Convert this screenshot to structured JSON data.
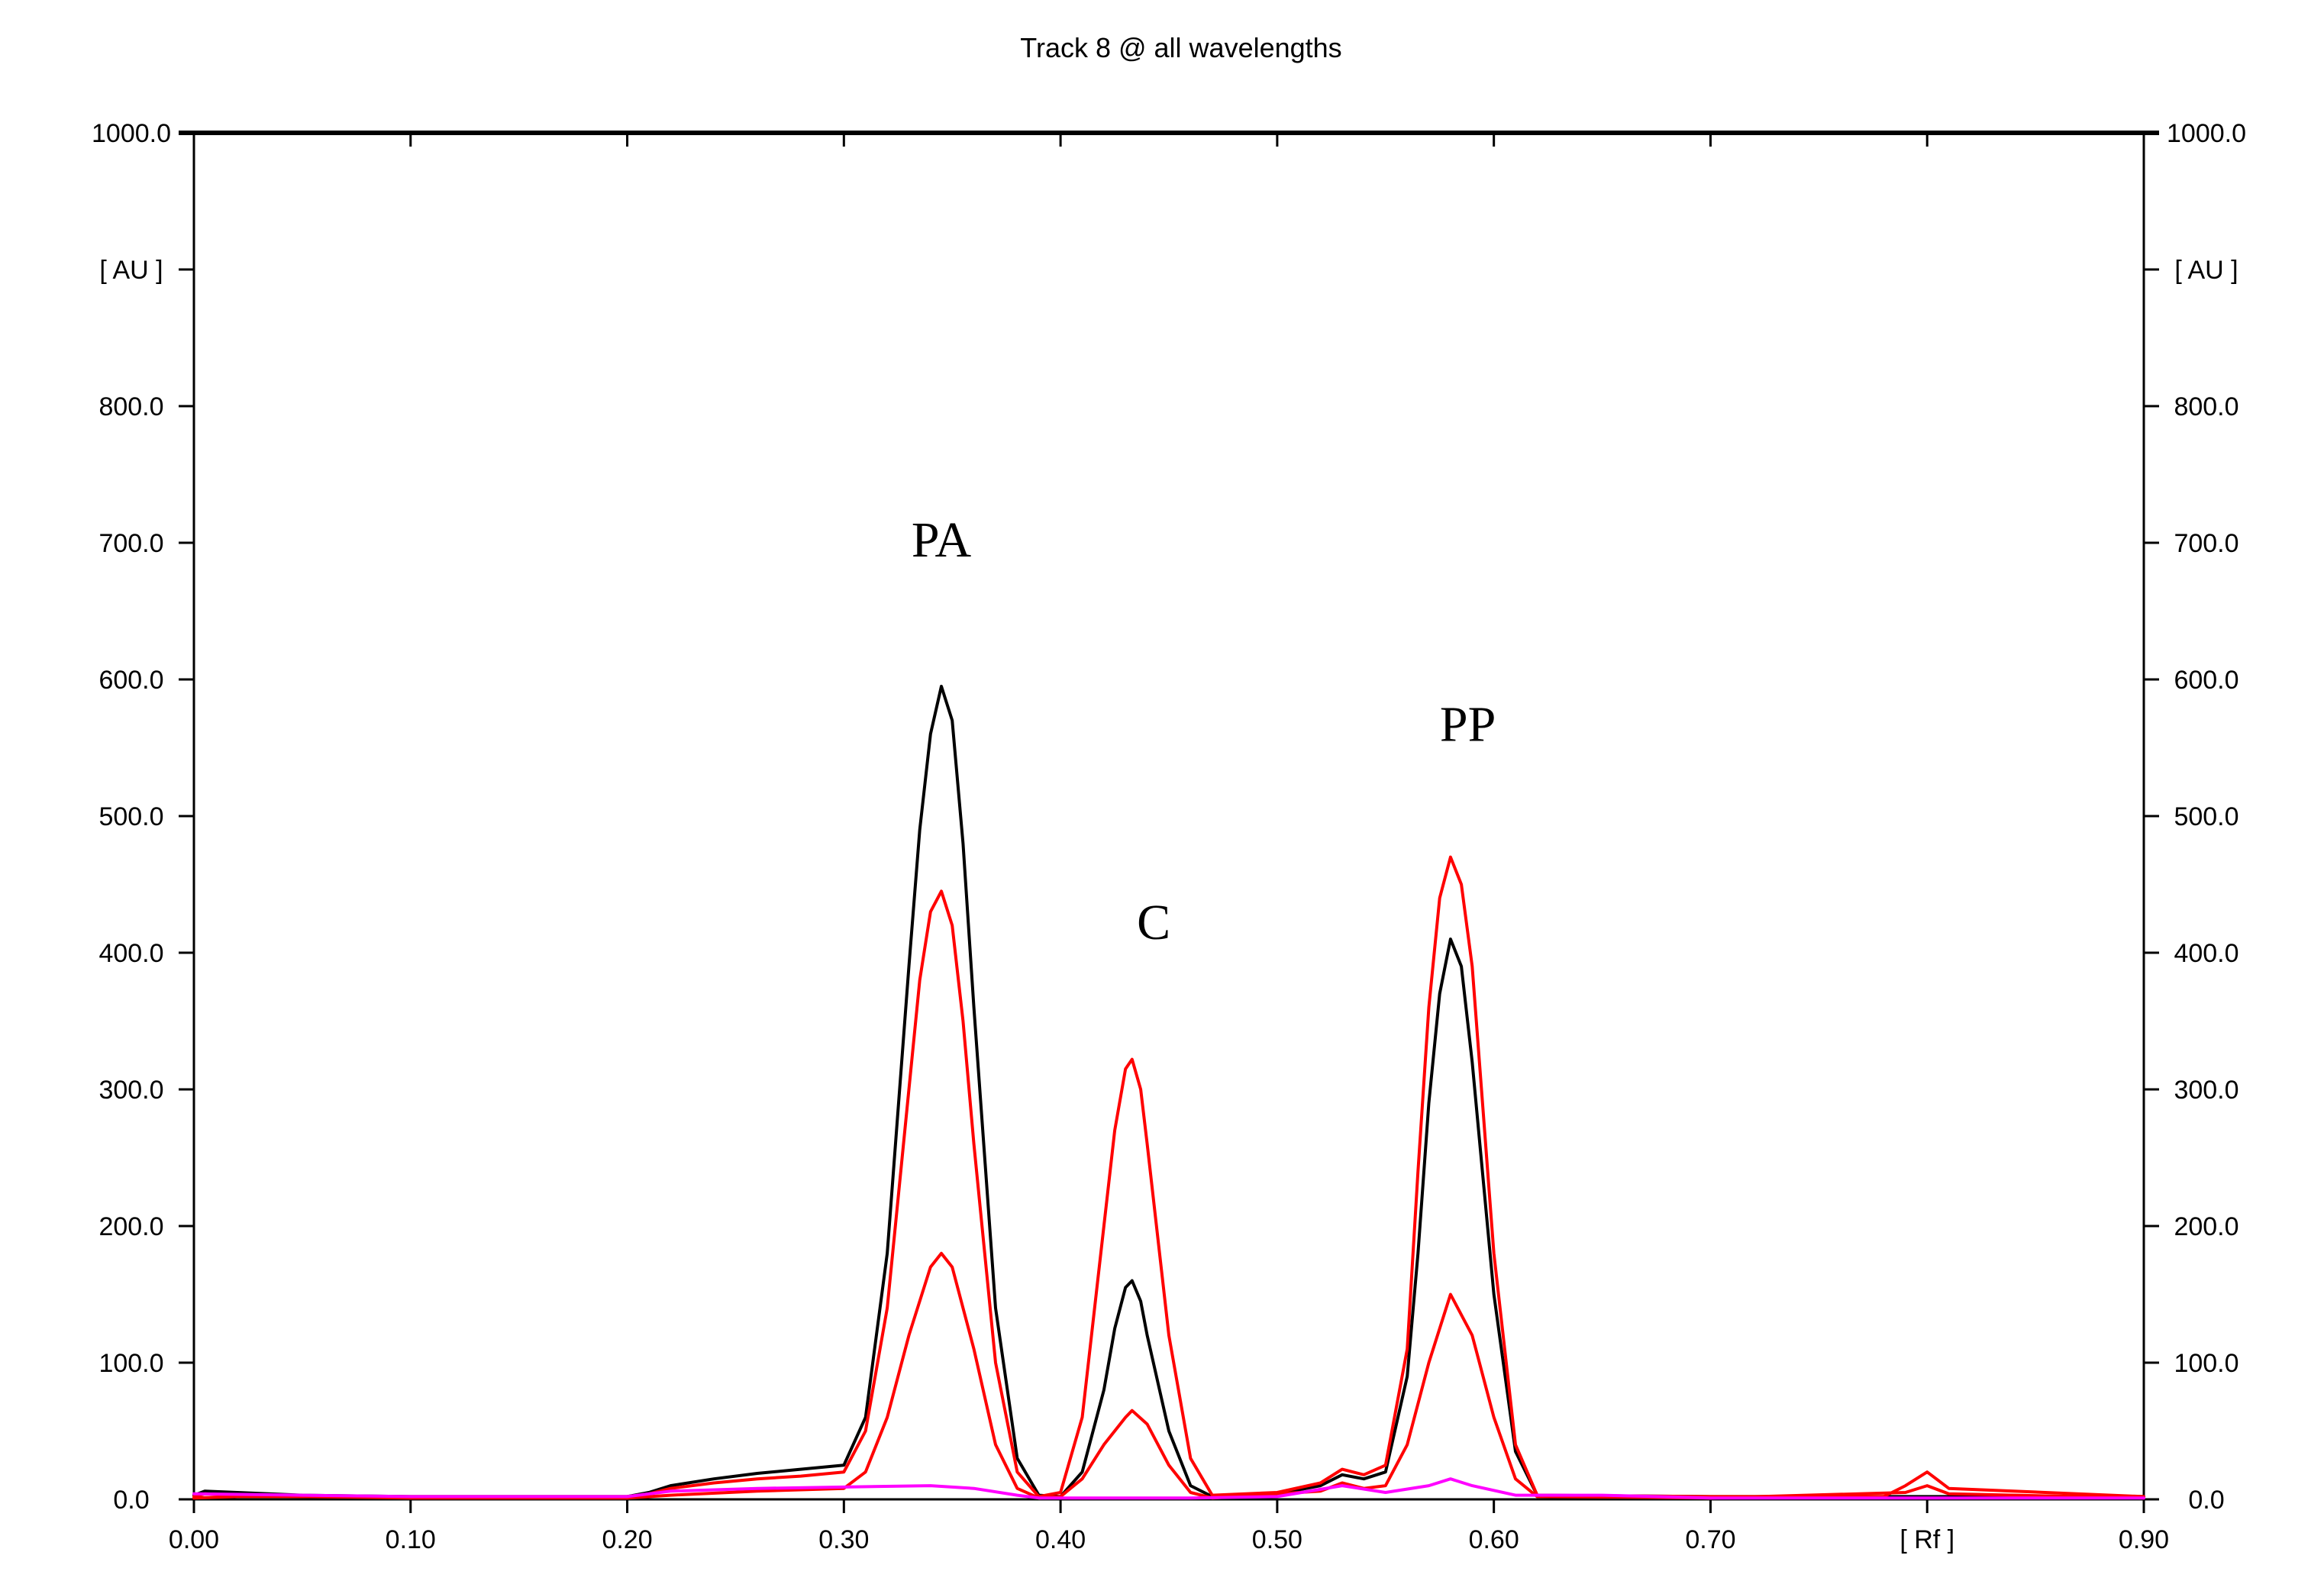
{
  "chart_data": {
    "type": "line",
    "title": "Track 8 @ all wavelengths",
    "x_tick_labels": [
      "0.00",
      "0.10",
      "0.20",
      "0.30",
      "0.40",
      "0.50",
      "0.60",
      "0.70",
      "[ Rf ]",
      "0.90"
    ],
    "y_tick_labels": [
      "0.0",
      "100.0",
      "200.0",
      "300.0",
      "400.0",
      "500.0",
      "600.0",
      "700.0",
      "800.0",
      "[ AU ]",
      "1000.0"
    ],
    "xlim": [
      0.0,
      0.9
    ],
    "ylim": [
      0.0,
      1000.0
    ],
    "grid": false,
    "legend": "none",
    "annotations": [
      {
        "text": "PA",
        "x": 0.345,
        "y": 690
      },
      {
        "text": "C",
        "x": 0.443,
        "y": 410
      },
      {
        "text": "PP",
        "x": 0.588,
        "y": 555
      }
    ],
    "series": [
      {
        "color": "#000000",
        "x": [
          0.0,
          0.005,
          0.02,
          0.05,
          0.1,
          0.15,
          0.2,
          0.21,
          0.22,
          0.24,
          0.26,
          0.28,
          0.3,
          0.31,
          0.32,
          0.33,
          0.335,
          0.34,
          0.345,
          0.35,
          0.355,
          0.36,
          0.37,
          0.38,
          0.39,
          0.4,
          0.41,
          0.42,
          0.425,
          0.43,
          0.433,
          0.437,
          0.44,
          0.45,
          0.46,
          0.47,
          0.5,
          0.52,
          0.53,
          0.54,
          0.55,
          0.56,
          0.565,
          0.57,
          0.575,
          0.58,
          0.585,
          0.59,
          0.6,
          0.61,
          0.62,
          0.7,
          0.8,
          0.81,
          0.9
        ],
        "y": [
          3,
          6,
          5,
          3,
          2,
          2,
          2,
          5,
          10,
          15,
          19,
          22,
          25,
          60,
          180,
          390,
          490,
          560,
          595,
          570,
          480,
          360,
          140,
          30,
          3,
          2,
          20,
          80,
          125,
          155,
          160,
          145,
          120,
          50,
          10,
          2,
          4,
          10,
          18,
          15,
          20,
          90,
          180,
          290,
          370,
          410,
          390,
          320,
          150,
          35,
          3,
          2,
          2,
          2,
          2
        ]
      },
      {
        "color": "#ff0000",
        "x": [
          0.0,
          0.005,
          0.02,
          0.05,
          0.1,
          0.15,
          0.2,
          0.21,
          0.22,
          0.24,
          0.26,
          0.28,
          0.3,
          0.31,
          0.32,
          0.33,
          0.335,
          0.34,
          0.345,
          0.35,
          0.355,
          0.36,
          0.37,
          0.38,
          0.39,
          0.4,
          0.41,
          0.42,
          0.425,
          0.43,
          0.433,
          0.437,
          0.44,
          0.45,
          0.46,
          0.47,
          0.5,
          0.52,
          0.53,
          0.54,
          0.55,
          0.56,
          0.565,
          0.57,
          0.575,
          0.58,
          0.585,
          0.59,
          0.6,
          0.61,
          0.62,
          0.7,
          0.78,
          0.79,
          0.8,
          0.81,
          0.9
        ],
        "y": [
          2,
          4,
          3,
          2,
          2,
          2,
          2,
          4,
          8,
          12,
          15,
          17,
          20,
          50,
          140,
          300,
          380,
          430,
          445,
          420,
          350,
          260,
          100,
          20,
          2,
          5,
          60,
          200,
          270,
          315,
          322,
          300,
          260,
          120,
          30,
          3,
          5,
          12,
          22,
          18,
          25,
          110,
          240,
          360,
          440,
          470,
          450,
          390,
          180,
          40,
          3,
          2,
          2,
          10,
          20,
          8,
          2
        ]
      },
      {
        "color": "#ff0000",
        "x": [
          0.0,
          0.02,
          0.05,
          0.1,
          0.2,
          0.22,
          0.26,
          0.3,
          0.31,
          0.32,
          0.33,
          0.34,
          0.345,
          0.35,
          0.36,
          0.37,
          0.38,
          0.39,
          0.4,
          0.41,
          0.42,
          0.43,
          0.433,
          0.44,
          0.45,
          0.46,
          0.47,
          0.52,
          0.53,
          0.54,
          0.55,
          0.56,
          0.57,
          0.58,
          0.59,
          0.6,
          0.61,
          0.62,
          0.7,
          0.79,
          0.8,
          0.81,
          0.9
        ],
        "y": [
          1,
          2,
          2,
          1,
          1,
          3,
          6,
          8,
          20,
          60,
          120,
          170,
          180,
          170,
          110,
          40,
          8,
          1,
          2,
          15,
          40,
          60,
          65,
          55,
          25,
          5,
          1,
          6,
          12,
          8,
          10,
          40,
          100,
          150,
          120,
          60,
          15,
          2,
          1,
          5,
          10,
          4,
          1
        ]
      },
      {
        "color": "#ff00ff",
        "x": [
          0.0,
          0.05,
          0.1,
          0.2,
          0.22,
          0.26,
          0.3,
          0.34,
          0.36,
          0.38,
          0.39,
          0.4,
          0.43,
          0.46,
          0.5,
          0.53,
          0.55,
          0.57,
          0.58,
          0.59,
          0.61,
          0.63,
          0.65,
          0.7,
          0.8,
          0.9
        ],
        "y": [
          4,
          3,
          2,
          2,
          6,
          8,
          9,
          10,
          8,
          3,
          1,
          1,
          1,
          1,
          2,
          10,
          5,
          10,
          15,
          10,
          3,
          3,
          3,
          1,
          1,
          1
        ]
      }
    ]
  }
}
